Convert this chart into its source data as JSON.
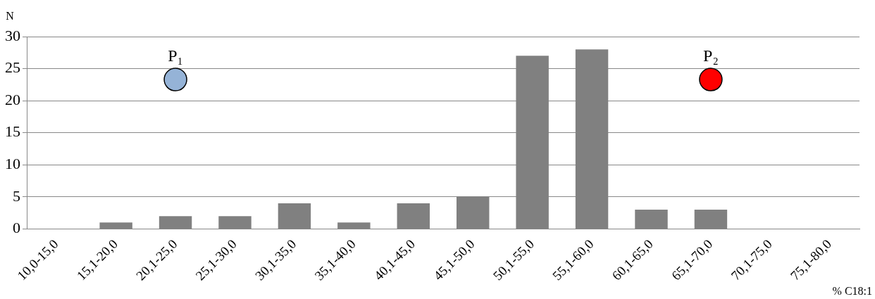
{
  "chart_data": {
    "type": "bar",
    "ylabel": "N",
    "xlabel": "% C18:1",
    "categories": [
      "10,0-15,0",
      "15,1-20,0",
      "20,1-25,0",
      "25,1-30,0",
      "30,1-35,0",
      "35,1-40,0",
      "40,1-45,0",
      "45,1-50,0",
      "50,1-55,0",
      "55,1-60,0",
      "60,1-65,0",
      "65,1-70,0",
      "70,1-75,0",
      "75,1-80,0"
    ],
    "series": [
      {
        "color": "#808080",
        "values": [
          0,
          1,
          2,
          2,
          4,
          1,
          4,
          5,
          27,
          28,
          3,
          3,
          0,
          0
        ]
      },
      {
        "type": "scatter",
        "name": "P₁",
        "color": "#95b3d7",
        "x": [
          "20,1-25,0"
        ],
        "values": [
          23.3
        ]
      },
      {
        "type": "scatter",
        "name": "P₂",
        "color": "#ff0000",
        "x": [
          "65,1-70,0"
        ],
        "values": [
          23.3
        ]
      }
    ],
    "ylim": [
      0,
      30
    ],
    "yticks": [
      0,
      5,
      10,
      15,
      20,
      25,
      30
    ],
    "grid": "y",
    "legend": false,
    "marker": "circle"
  }
}
